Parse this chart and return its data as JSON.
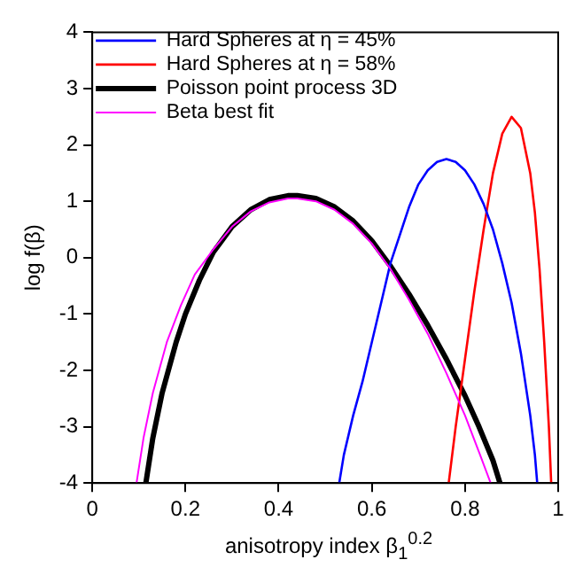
{
  "chart_data": {
    "type": "line",
    "xlabel": "anisotropy index β$_{1}$$^{0.2}$",
    "ylabel": "log f(β)",
    "xlim": [
      0,
      1
    ],
    "xticks": [
      0,
      0.2,
      0.4,
      0.6,
      0.8,
      1
    ],
    "ylim": [
      -4,
      4
    ],
    "yticks": [
      -4,
      -3,
      -2,
      -1,
      0,
      1,
      2,
      3,
      4
    ],
    "grid": false,
    "legend": "top left",
    "marker": "none",
    "line_style": "solid",
    "series": [
      {
        "name": "Hard Spheres at η = 45%",
        "color": "#0000ff",
        "x": [
          0.53,
          0.54,
          0.56,
          0.58,
          0.6,
          0.62,
          0.64,
          0.66,
          0.68,
          0.7,
          0.72,
          0.74,
          0.76,
          0.78,
          0.8,
          0.82,
          0.84,
          0.86,
          0.88,
          0.9,
          0.92,
          0.94,
          0.95,
          0.955
        ],
        "values": [
          -4,
          -3.5,
          -2.8,
          -2.2,
          -1.5,
          -0.8,
          -0.1,
          0.4,
          0.9,
          1.3,
          1.55,
          1.7,
          1.75,
          1.7,
          1.55,
          1.3,
          0.95,
          0.5,
          -0.1,
          -0.8,
          -1.7,
          -2.8,
          -3.5,
          -4
        ]
      },
      {
        "name": "Hard Spheres at η = 58%",
        "color": "#ff0000",
        "x": [
          0.765,
          0.78,
          0.8,
          0.82,
          0.84,
          0.86,
          0.88,
          0.9,
          0.92,
          0.94,
          0.95,
          0.96,
          0.97,
          0.98,
          0.985
        ],
        "values": [
          -4,
          -3,
          -1.8,
          -0.6,
          0.5,
          1.5,
          2.2,
          2.5,
          2.3,
          1.5,
          0.8,
          -0.2,
          -1.5,
          -3,
          -4
        ]
      },
      {
        "name": "Poisson point process 3D",
        "color": "#000000",
        "x": [
          0.115,
          0.13,
          0.15,
          0.18,
          0.2,
          0.23,
          0.26,
          0.3,
          0.34,
          0.38,
          0.42,
          0.44,
          0.48,
          0.52,
          0.56,
          0.6,
          0.64,
          0.68,
          0.72,
          0.76,
          0.8,
          0.83,
          0.86,
          0.875
        ],
        "values": [
          -4,
          -3.2,
          -2.4,
          -1.5,
          -1,
          -0.4,
          0.1,
          0.55,
          0.85,
          1.03,
          1.1,
          1.1,
          1.05,
          0.9,
          0.65,
          0.3,
          -0.15,
          -0.65,
          -1.2,
          -1.8,
          -2.45,
          -3,
          -3.6,
          -4
        ]
      },
      {
        "name": "Beta best fit",
        "color": "#ff00ff",
        "x": [
          0.095,
          0.11,
          0.13,
          0.16,
          0.19,
          0.22,
          0.26,
          0.3,
          0.34,
          0.38,
          0.42,
          0.44,
          0.48,
          0.52,
          0.56,
          0.6,
          0.64,
          0.68,
          0.72,
          0.76,
          0.8,
          0.83,
          0.855
        ],
        "values": [
          -4,
          -3.2,
          -2.4,
          -1.5,
          -0.85,
          -0.3,
          0.15,
          0.55,
          0.82,
          0.98,
          1.05,
          1.05,
          1,
          0.85,
          0.6,
          0.25,
          -0.2,
          -0.75,
          -1.35,
          -2.05,
          -2.8,
          -3.45,
          -4
        ]
      }
    ]
  }
}
